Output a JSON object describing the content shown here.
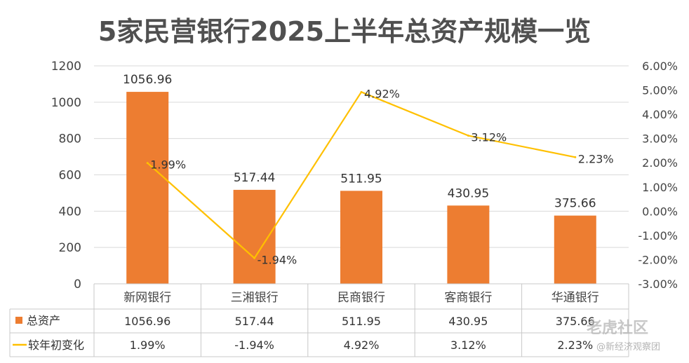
{
  "chart_data": {
    "type": "bar",
    "title": "5家民营银行2025上半年总资产规模一览",
    "categories": [
      "新网银行",
      "三湘银行",
      "民商银行",
      "客商银行",
      "华通银行"
    ],
    "series": [
      {
        "name": "总资产",
        "type": "bar",
        "axis": "left",
        "color": "#ED7D31",
        "values": [
          1056.96,
          517.44,
          511.95,
          430.95,
          375.66
        ],
        "labels": [
          "1056.96",
          "517.44",
          "511.95",
          "430.95",
          "375.66"
        ]
      },
      {
        "name": "较年初变化",
        "type": "line",
        "axis": "right",
        "color": "#FFC000",
        "values": [
          1.99,
          -1.94,
          4.92,
          3.12,
          2.23
        ],
        "labels": [
          "1.99%",
          "-1.94%",
          "4.92%",
          "3.12%",
          "2.23%"
        ]
      }
    ],
    "y_left": {
      "range": [
        0,
        1200
      ],
      "ticks": [
        "0",
        "200",
        "400",
        "600",
        "800",
        "1000",
        "1200"
      ]
    },
    "y_right": {
      "range": [
        -3,
        6
      ],
      "ticks": [
        "-3.00%",
        "-2.00%",
        "-1.00%",
        "0.00%",
        "1.00%",
        "2.00%",
        "3.00%",
        "4.00%",
        "5.00%",
        "6.00%"
      ]
    },
    "grid": true,
    "legend": "data-table"
  },
  "watermark": {
    "brand": "老虎社区",
    "source": "@新经济观察团"
  }
}
